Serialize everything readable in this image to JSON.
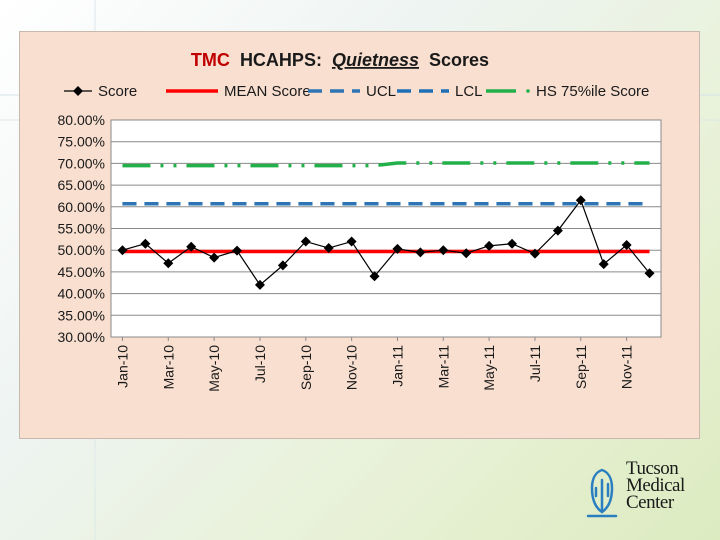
{
  "chart_data": {
    "type": "line",
    "title": {
      "part1": "TMC",
      "part2": "HCAHPS:",
      "part3": "Quietness",
      "part4": "Scores"
    },
    "xlabel": "",
    "ylabel": "",
    "ylim": [
      0.3,
      0.8
    ],
    "yticks": [
      "80.00%",
      "75.00%",
      "70.00%",
      "65.00%",
      "60.00%",
      "55.00%",
      "50.00%",
      "45.00%",
      "40.00%",
      "35.00%",
      "30.00%"
    ],
    "xtick_labels": [
      "Jan-10",
      "Mar-10",
      "May-10",
      "Jul-10",
      "Sep-10",
      "Nov-10",
      "Jan-11",
      "Mar-11",
      "May-11",
      "Jul-11",
      "Sep-11",
      "Nov-11"
    ],
    "categories": [
      "Jan-10",
      "Feb-10",
      "Mar-10",
      "Apr-10",
      "May-10",
      "Jun-10",
      "Jul-10",
      "Aug-10",
      "Sep-10",
      "Oct-10",
      "Nov-10",
      "Dec-10",
      "Jan-11",
      "Feb-11",
      "Mar-11",
      "Apr-11",
      "May-11",
      "Jun-11",
      "Jul-11",
      "Aug-11",
      "Sep-11",
      "Oct-11",
      "Nov-11",
      "Dec-11"
    ],
    "grid": true,
    "legend_position": "top",
    "series": [
      {
        "name": "Score",
        "color": "#000000",
        "style": "line-diamond",
        "values": [
          0.5,
          0.515,
          0.47,
          0.508,
          0.483,
          0.499,
          0.42,
          0.465,
          0.52,
          0.505,
          0.52,
          0.44,
          0.503,
          0.495,
          0.5,
          0.493,
          0.51,
          0.515,
          0.492,
          0.545,
          0.615,
          0.468,
          0.512,
          0.447
        ]
      },
      {
        "name": "MEAN Score",
        "color": "#ff0000",
        "style": "solid",
        "values": [
          0.497,
          0.497,
          0.497,
          0.497,
          0.497,
          0.497,
          0.497,
          0.497,
          0.497,
          0.497,
          0.497,
          0.497,
          0.497,
          0.497,
          0.497,
          0.497,
          0.497,
          0.497,
          0.497,
          0.497,
          0.497,
          0.497,
          0.497,
          0.497
        ]
      },
      {
        "name": "UCL",
        "color": "#2e75b6",
        "style": "dashed",
        "values": [
          0.607,
          0.607,
          0.607,
          0.607,
          0.607,
          0.607,
          0.607,
          0.607,
          0.607,
          0.607,
          0.607,
          0.607,
          0.607,
          0.607,
          0.607,
          0.607,
          0.607,
          0.607,
          0.607,
          0.607,
          0.607,
          0.607,
          0.607,
          0.607
        ]
      },
      {
        "name": "LCL",
        "color": "#1f6fb5",
        "style": "dashed",
        "values": [
          0.607,
          0.607,
          0.607,
          0.607,
          0.607,
          0.607,
          0.607,
          0.607,
          0.607,
          0.607,
          0.607,
          0.607,
          0.607,
          0.607,
          0.607,
          0.607,
          0.607,
          0.607,
          0.607,
          0.607,
          0.607,
          0.607,
          0.607,
          0.607
        ]
      },
      {
        "name": "HS 75%ile Score",
        "color": "#22b04a",
        "style": "dash-dot",
        "values": [
          0.695,
          0.695,
          0.695,
          0.695,
          0.695,
          0.695,
          0.695,
          0.695,
          0.695,
          0.695,
          0.695,
          0.695,
          0.701,
          0.701,
          0.701,
          0.701,
          0.701,
          0.701,
          0.701,
          0.701,
          0.701,
          0.701,
          0.701,
          0.701
        ]
      }
    ]
  },
  "logo": {
    "line1": "Tucson",
    "line2": "Medical",
    "line3": "Center",
    "color": "#2b7fc0"
  }
}
